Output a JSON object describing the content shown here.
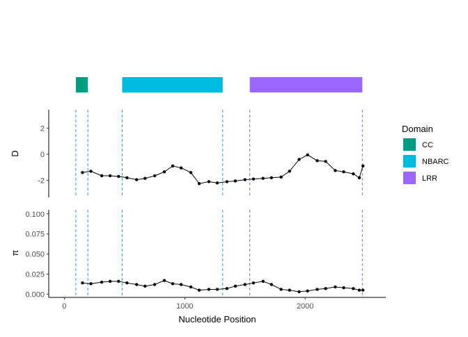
{
  "chart_data": [
    {
      "type": "bar",
      "panel": "domain-track",
      "title": "",
      "domains": [
        {
          "name": "CC",
          "start": 95,
          "end": 195,
          "color": "#009E80"
        },
        {
          "name": "NBARC",
          "start": 480,
          "end": 1315,
          "color": "#00BBE0"
        },
        {
          "name": "LRR",
          "start": 1540,
          "end": 2475,
          "color": "#9966FF"
        }
      ]
    },
    {
      "type": "line",
      "panel": "tajima-d",
      "ylabel": "D",
      "ylim": [
        -3.3,
        3.4
      ],
      "yticks": [
        "2",
        "0",
        "-2"
      ],
      "ytick_values": [
        2,
        0,
        -2
      ],
      "x": [
        150,
        220,
        310,
        380,
        450,
        520,
        600,
        670,
        750,
        830,
        900,
        970,
        1050,
        1120,
        1200,
        1270,
        1350,
        1420,
        1500,
        1570,
        1650,
        1720,
        1800,
        1870,
        1950,
        2020,
        2100,
        2170,
        2250,
        2320,
        2400,
        2450,
        2480
      ],
      "values": [
        -1.4,
        -1.3,
        -1.65,
        -1.65,
        -1.7,
        -1.8,
        -1.95,
        -1.85,
        -1.65,
        -1.35,
        -0.9,
        -1.05,
        -1.4,
        -2.25,
        -2.1,
        -2.2,
        -2.1,
        -2.05,
        -1.95,
        -1.9,
        -1.85,
        -1.8,
        -1.75,
        -1.3,
        -0.4,
        -0.05,
        -0.5,
        -0.55,
        -1.25,
        -1.35,
        -1.5,
        -1.8,
        -0.9
      ]
    },
    {
      "type": "line",
      "panel": "nucleotide-diversity",
      "ylabel": "π",
      "xlabel": "Nucleotide Position",
      "xlim": [
        -130,
        2670
      ],
      "ylim": [
        -0.004,
        0.105
      ],
      "yticks": [
        "0.100",
        "0.075",
        "0.050",
        "0.025",
        "0.000"
      ],
      "ytick_values": [
        0.1,
        0.075,
        0.05,
        0.025,
        0.0
      ],
      "xticks": [
        "0",
        "1000",
        "2000"
      ],
      "xtick_values": [
        0,
        1000,
        2000
      ],
      "x": [
        150,
        220,
        310,
        380,
        450,
        520,
        600,
        670,
        750,
        830,
        900,
        970,
        1050,
        1120,
        1200,
        1270,
        1350,
        1420,
        1500,
        1570,
        1650,
        1720,
        1800,
        1870,
        1950,
        2020,
        2100,
        2170,
        2250,
        2320,
        2400,
        2450,
        2480
      ],
      "values": [
        0.014,
        0.013,
        0.015,
        0.016,
        0.016,
        0.014,
        0.012,
        0.01,
        0.012,
        0.017,
        0.013,
        0.012,
        0.009,
        0.005,
        0.006,
        0.006,
        0.007,
        0.01,
        0.012,
        0.014,
        0.016,
        0.012,
        0.006,
        0.005,
        0.003,
        0.004,
        0.006,
        0.007,
        0.009,
        0.008,
        0.007,
        0.005,
        0.005
      ]
    }
  ],
  "boundaries": [
    95,
    195,
    480,
    1315,
    1540,
    2475
  ],
  "legend": {
    "title": "Domain",
    "position": "right",
    "items": [
      {
        "label": "CC",
        "color": "#009E80"
      },
      {
        "label": "NBARC",
        "color": "#00BBE0"
      },
      {
        "label": "LRR",
        "color": "#9966FF"
      }
    ]
  }
}
